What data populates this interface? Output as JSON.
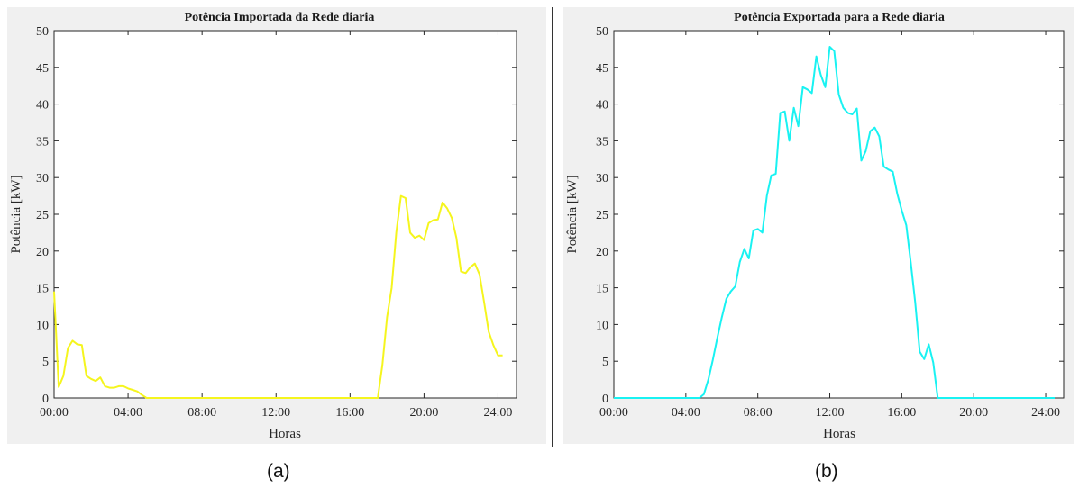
{
  "figure": {
    "caption_a": "(a)",
    "caption_b": "(b)"
  },
  "chart_data": [
    {
      "type": "line",
      "title": "Potência Importada da Rede diaria",
      "xlabel": "Horas",
      "ylabel": "Potência [kW]",
      "xlim": [
        0,
        25
      ],
      "ylim": [
        0,
        50
      ],
      "xticks": [
        0,
        4,
        8,
        12,
        16,
        20,
        24
      ],
      "xtick_labels": [
        "00:00",
        "04:00",
        "08:00",
        "12:00",
        "16:00",
        "20:00",
        "24:00"
      ],
      "yticks": [
        0,
        5,
        10,
        15,
        20,
        25,
        30,
        35,
        40,
        45,
        50
      ],
      "grid": false,
      "color": "#f5f51e",
      "series": [
        {
          "x": [
            0,
            0.25,
            0.5,
            0.75,
            1.0,
            1.25,
            1.5,
            1.75,
            2.0,
            2.25,
            2.5,
            2.75,
            3.0,
            3.25,
            3.5,
            3.75,
            4.0,
            4.25,
            4.5,
            4.75,
            5.0,
            5.25,
            6,
            8,
            10,
            12,
            14,
            16,
            17.5,
            17.75,
            18.0,
            18.25,
            18.5,
            18.75,
            19.0,
            19.25,
            19.5,
            19.75,
            20.0,
            20.25,
            20.5,
            20.75,
            21.0,
            21.25,
            21.5,
            21.75,
            22.0,
            22.25,
            22.5,
            22.75,
            23.0,
            23.25,
            23.5,
            23.75,
            24.0,
            24.25
          ],
          "y": [
            14.5,
            1.5,
            3.0,
            6.8,
            7.8,
            7.3,
            7.2,
            3.0,
            2.6,
            2.3,
            2.8,
            1.6,
            1.4,
            1.4,
            1.6,
            1.6,
            1.3,
            1.1,
            0.9,
            0.4,
            0,
            0,
            0,
            0,
            0,
            0,
            0,
            0,
            0,
            4.5,
            11.0,
            15.0,
            22.5,
            27.5,
            27.2,
            22.5,
            21.8,
            22.1,
            21.5,
            23.8,
            24.2,
            24.3,
            26.6,
            25.8,
            24.5,
            21.8,
            17.2,
            17.0,
            17.8,
            18.3,
            16.8,
            13.0,
            9.0,
            7.2,
            5.8,
            5.8
          ]
        }
      ]
    },
    {
      "type": "line",
      "title": "Potência Exportada para a Rede diaria",
      "xlabel": "Horas",
      "ylabel": "Potência [kW]",
      "xlim": [
        0,
        25
      ],
      "ylim": [
        0,
        50
      ],
      "xticks": [
        0,
        4,
        8,
        12,
        16,
        20,
        24
      ],
      "xtick_labels": [
        "00:00",
        "04:00",
        "08:00",
        "12:00",
        "16:00",
        "20:00",
        "24:00"
      ],
      "yticks": [
        0,
        5,
        10,
        15,
        20,
        25,
        30,
        35,
        40,
        45,
        50
      ],
      "grid": false,
      "color": "#19f2f2",
      "series": [
        {
          "x": [
            0,
            4.75,
            5.0,
            5.25,
            5.5,
            5.75,
            6.0,
            6.25,
            6.5,
            6.75,
            7.0,
            7.25,
            7.5,
            7.75,
            8.0,
            8.25,
            8.5,
            8.75,
            9.0,
            9.25,
            9.5,
            9.75,
            10.0,
            10.25,
            10.5,
            10.75,
            11.0,
            11.25,
            11.5,
            11.75,
            12.0,
            12.25,
            12.5,
            12.75,
            13.0,
            13.25,
            13.5,
            13.75,
            14.0,
            14.25,
            14.5,
            14.75,
            15.0,
            15.25,
            15.5,
            15.75,
            16.0,
            16.25,
            16.5,
            16.75,
            17.0,
            17.25,
            17.5,
            17.75,
            18.0,
            18.25,
            24.5
          ],
          "y": [
            0,
            0,
            0.5,
            2.5,
            5.2,
            8.2,
            11.0,
            13.5,
            14.5,
            15.2,
            18.5,
            20.3,
            19.0,
            22.8,
            23.0,
            22.5,
            27.5,
            30.3,
            30.5,
            38.8,
            39.0,
            35.0,
            39.5,
            37.0,
            42.3,
            42.0,
            41.5,
            46.5,
            44.0,
            42.3,
            47.8,
            47.2,
            41.3,
            39.5,
            38.8,
            38.6,
            39.4,
            32.3,
            33.6,
            36.3,
            36.8,
            35.6,
            31.5,
            31.1,
            30.8,
            27.8,
            25.5,
            23.5,
            18.5,
            13.0,
            6.3,
            5.3,
            7.3,
            4.8,
            0,
            0,
            0
          ]
        }
      ]
    }
  ]
}
